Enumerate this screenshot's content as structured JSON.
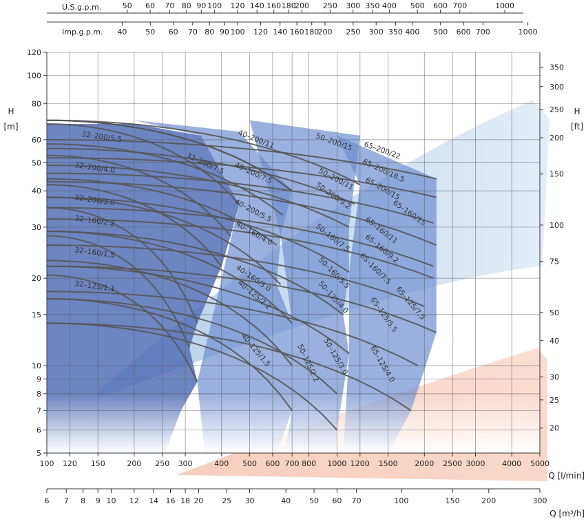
{
  "chart_data": {
    "type": "line",
    "chart_kind": "pump-performance-range-chart",
    "scale": "log-log",
    "grid": true,
    "legend": "none",
    "xlabel": "Q [l/min]",
    "ylabel_left": "H\n[m]",
    "ylabel_right": "H\n[ft]",
    "secondary_x_label": "Q [m³/h]",
    "usgpm_label": "U.S.g.p.m.",
    "impgpm_label": "Imp.g.p.m.",
    "xlim": [
      100,
      5000
    ],
    "ylim": [
      5,
      120
    ],
    "x_ticks": [
      100,
      120,
      150,
      200,
      250,
      300,
      400,
      500,
      600,
      700,
      800,
      1000,
      1200,
      1500,
      2000,
      2500,
      3000,
      4000,
      5000
    ],
    "y_ticks": [
      5,
      6,
      7,
      8,
      9,
      10,
      15,
      20,
      30,
      40,
      50,
      60,
      80,
      100,
      120
    ],
    "ft_ticks": [
      20,
      25,
      30,
      40,
      50,
      75,
      100,
      150,
      200,
      250,
      300,
      350
    ],
    "m3h_ticks": [
      6,
      7,
      8,
      9,
      10,
      12,
      14,
      16,
      18,
      20,
      25,
      30,
      40,
      50,
      60,
      70,
      100,
      150,
      200,
      300
    ],
    "usgpm_ticks": [
      50,
      60,
      70,
      80,
      90,
      100,
      120,
      140,
      160,
      180,
      200,
      250,
      300,
      350,
      400,
      500,
      600,
      700,
      1000
    ],
    "impgpm_ticks": [
      40,
      50,
      60,
      70,
      80,
      90,
      100,
      120,
      140,
      160,
      180,
      200,
      250,
      300,
      350,
      400,
      500,
      600,
      700,
      1000
    ],
    "colors": {
      "region_fill": "#6f8fd0",
      "region_dark": "#5470b6",
      "curve_stroke": "#555555",
      "grid": "#555555",
      "light_blue_band": "#cfe2f3",
      "salmon_band": "#f6c8b6"
    },
    "families": [
      {
        "name": "32-200",
        "qmax": [
          340,
          460
        ],
        "curves": [
          {
            "label": "32–200/5.5",
            "hmax": 68,
            "qend": 460,
            "hend": 36
          },
          {
            "label": "32–200/4.0",
            "hmax": 53,
            "qend": 430,
            "hend": 28
          },
          {
            "label": "32–200/3.0",
            "hmax": 42,
            "qend": 400,
            "hend": 22
          }
        ]
      },
      {
        "name": "32-160",
        "curves": [
          {
            "label": "32–160/2.2",
            "hmax": 35,
            "qend": 330,
            "hend": 14
          },
          {
            "label": "32–160/1.5",
            "hmax": 28,
            "qend": 310,
            "hend": 11.5
          }
        ]
      },
      {
        "name": "32-125",
        "curves": [
          {
            "label": "32–125/1.1",
            "hmax": 20.5,
            "qend": 330,
            "hend": 8.8
          }
        ]
      },
      {
        "name": "40-200",
        "curves": [
          {
            "label": "32–200/7.5",
            "hmax": 70,
            "qend": 700,
            "hend": 40
          },
          {
            "label": "40–200/11",
            "hmax": 70,
            "qend": 700,
            "hend": 40
          },
          {
            "label": "40–200/7.5",
            "hmax": 58,
            "qend": 650,
            "hend": 33
          },
          {
            "label": "40–200/5.5",
            "hmax": 44,
            "qend": 620,
            "hend": 26
          }
        ]
      },
      {
        "name": "40-160",
        "curves": [
          {
            "label": "40–160/4.0",
            "hmax": 38,
            "qend": 640,
            "hend": 19
          },
          {
            "label": "40–160/3.0",
            "hmax": 29,
            "qend": 700,
            "hend": 14
          }
        ]
      },
      {
        "name": "40-125",
        "curves": [
          {
            "label": "40–125/2.2",
            "hmax": 23,
            "qend": 700,
            "hend": 10
          },
          {
            "label": "40–125/1.5",
            "hmax": 17,
            "qend": 700,
            "hend": 7
          }
        ]
      },
      {
        "name": "50-200",
        "curves": [
          {
            "label": "50–200/15",
            "hmax": 70,
            "qend": 1200,
            "hend": 42
          },
          {
            "label": "50–200/11",
            "hmax": 56,
            "qend": 1150,
            "hend": 36
          },
          {
            "label": "50–200/9.2",
            "hmax": 49,
            "qend": 1100,
            "hend": 30
          }
        ]
      },
      {
        "name": "50-160",
        "curves": [
          {
            "label": "50–160/7.5",
            "hmax": 38,
            "qend": 1100,
            "hend": 21
          },
          {
            "label": "50–160/5.5",
            "hmax": 29,
            "qend": 1050,
            "hend": 15
          }
        ]
      },
      {
        "name": "50-125",
        "curves": [
          {
            "label": "50–125/4.0",
            "hmax": 22,
            "qend": 1100,
            "hend": 11
          },
          {
            "label": "50–125/3.0",
            "hmax": 17,
            "qend": 1000,
            "hend": 8
          },
          {
            "label": "50–125/2.2",
            "hmax": 14,
            "qend": 1000,
            "hend": 6
          }
        ]
      },
      {
        "name": "65-200",
        "curves": [
          {
            "label": "65–200/22",
            "hmax": 60,
            "qend": 2200,
            "hend": 44
          },
          {
            "label": "65–200/18.5",
            "hmax": 52,
            "qend": 2200,
            "hend": 38
          },
          {
            "label": "65–200/15",
            "hmax": 46,
            "qend": 2150,
            "hend": 31
          }
        ]
      },
      {
        "name": "65-160",
        "curves": [
          {
            "label": "65–160/15",
            "hmax": 43,
            "qend": 2200,
            "hend": 26
          },
          {
            "label": "65–160/11",
            "hmax": 35,
            "qend": 2150,
            "hend": 22
          },
          {
            "label": "65–160/9.2",
            "hmax": 32,
            "qend": 2150,
            "hend": 20
          },
          {
            "label": "65–160/7.5",
            "hmax": 26,
            "qend": 2000,
            "hend": 16
          }
        ]
      },
      {
        "name": "65-125",
        "curves": [
          {
            "label": "65–125/7.5",
            "hmax": 22,
            "qend": 2200,
            "hend": 13
          },
          {
            "label": "65–125/5.5",
            "hmax": 18,
            "qend": 1900,
            "hend": 10
          },
          {
            "label": "65–125/4.0",
            "hmax": 14,
            "qend": 1800,
            "hend": 7
          }
        ]
      }
    ]
  }
}
